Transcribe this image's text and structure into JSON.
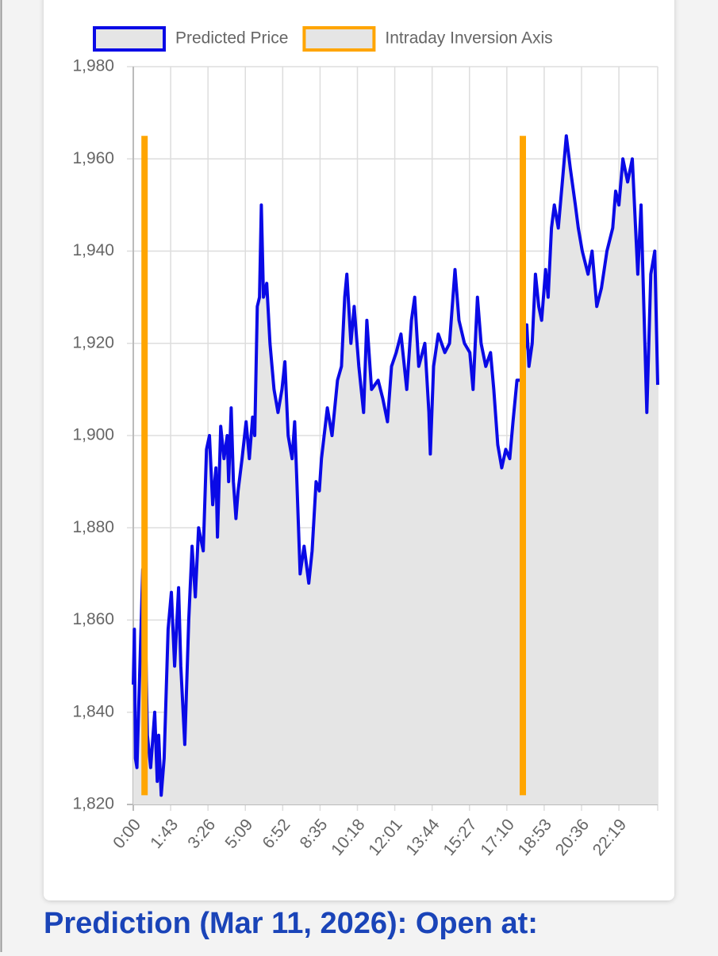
{
  "chart_data": {
    "type": "line",
    "xlim": [
      0,
      1446
    ],
    "xticks": [
      {
        "value": 0,
        "label": "0:00"
      },
      {
        "value": 103,
        "label": "1:43"
      },
      {
        "value": 206,
        "label": "3:26"
      },
      {
        "value": 309,
        "label": "5:09"
      },
      {
        "value": 412,
        "label": "6:52"
      },
      {
        "value": 515,
        "label": "8:35"
      },
      {
        "value": 618,
        "label": "10:18"
      },
      {
        "value": 721,
        "label": "12:01"
      },
      {
        "value": 824,
        "label": "13:44"
      },
      {
        "value": 927,
        "label": "15:27"
      },
      {
        "value": 1030,
        "label": "17:10"
      },
      {
        "value": 1133,
        "label": "18:53"
      },
      {
        "value": 1236,
        "label": "20:36"
      },
      {
        "value": 1339,
        "label": "22:19"
      }
    ],
    "ylim": [
      1820,
      1980
    ],
    "yticks": [
      {
        "value": 1820,
        "label": "1,820"
      },
      {
        "value": 1840,
        "label": "1,840"
      },
      {
        "value": 1860,
        "label": "1,860"
      },
      {
        "value": 1880,
        "label": "1,880"
      },
      {
        "value": 1900,
        "label": "1,900"
      },
      {
        "value": 1920,
        "label": "1,920"
      },
      {
        "value": 1940,
        "label": "1,940"
      },
      {
        "value": 1960,
        "label": "1,960"
      },
      {
        "value": 1980,
        "label": "1,980"
      }
    ],
    "grid": true,
    "legend": "top",
    "series": [
      {
        "name": "Predicted Price",
        "color": "#0a0ae6",
        "fill_color": "#e5e5e5",
        "x": [
          0,
          3,
          6,
          10,
          26,
          33,
          39,
          48,
          59,
          66,
          70,
          77,
          85,
          96,
          105,
          114,
          125,
          131,
          142,
          153,
          162,
          171,
          180,
          193,
          202,
          210,
          219,
          228,
          232,
          241,
          250,
          259,
          263,
          270,
          276,
          283,
          289,
          300,
          311,
          320,
          329,
          335,
          342,
          348,
          353,
          359,
          368,
          377,
          388,
          399,
          410,
          418,
          427,
          438,
          445,
          451,
          460,
          471,
          484,
          493,
          504,
          513,
          519,
          535,
          548,
          563,
          574,
          583,
          589,
          600,
          609,
          622,
          635,
          644,
          657,
          675,
          688,
          701,
          712,
          725,
          738,
          754,
          767,
          776,
          787,
          804,
          815,
          819,
          828,
          841,
          859,
          872,
          887,
          898,
          913,
          928,
          937,
          949,
          959,
          972,
          985,
          994,
          1005,
          1016,
          1027,
          1038,
          1047,
          1058,
          1069,
          1078,
          1085,
          1091,
          1100,
          1109,
          1118,
          1126,
          1137,
          1144,
          1153,
          1161,
          1172,
          1183,
          1194,
          1205,
          1219,
          1227,
          1238,
          1254,
          1265,
          1278,
          1291,
          1306,
          1322,
          1330,
          1339,
          1350,
          1363,
          1376,
          1385,
          1391,
          1400,
          1407,
          1416,
          1427,
          1438,
          1446
        ],
        "values": [
          1846,
          1858,
          1830,
          1828,
          1871,
          1860,
          1835,
          1828,
          1840,
          1825,
          1835,
          1822,
          1830,
          1858,
          1866,
          1850,
          1867,
          1850,
          1833,
          1860,
          1876,
          1865,
          1880,
          1875,
          1897,
          1900,
          1885,
          1893,
          1878,
          1902,
          1895,
          1900,
          1890,
          1906,
          1890,
          1882,
          1888,
          1895,
          1903,
          1895,
          1904,
          1900,
          1928,
          1930,
          1950,
          1930,
          1933,
          1920,
          1910,
          1905,
          1910,
          1916,
          1900,
          1895,
          1903,
          1890,
          1870,
          1876,
          1868,
          1875,
          1890,
          1888,
          1895,
          1906,
          1900,
          1912,
          1915,
          1930,
          1935,
          1920,
          1928,
          1915,
          1905,
          1925,
          1910,
          1912,
          1908,
          1903,
          1915,
          1918,
          1922,
          1910,
          1925,
          1930,
          1915,
          1920,
          1905,
          1896,
          1915,
          1922,
          1918,
          1920,
          1936,
          1925,
          1920,
          1918,
          1910,
          1930,
          1920,
          1915,
          1918,
          1910,
          1898,
          1893,
          1897,
          1895,
          1903,
          1912,
          1912,
          1918,
          1924,
          1915,
          1920,
          1935,
          1928,
          1925,
          1936,
          1930,
          1945,
          1950,
          1945,
          1955,
          1965,
          1958,
          1950,
          1945,
          1940,
          1935,
          1940,
          1928,
          1932,
          1940,
          1945,
          1953,
          1950,
          1960,
          1955,
          1960,
          1945,
          1935,
          1950,
          1930,
          1905,
          1935,
          1940,
          1911
        ]
      },
      {
        "name": "Intraday Inversion Axis",
        "color": "#ffa500",
        "x": [
          31,
          31,
          31,
          1074,
          1074
        ],
        "values": [
          1822,
          1965,
          null,
          1822,
          1965
        ]
      }
    ]
  },
  "heading": "Prediction (Mar 11, 2026): Open at:"
}
